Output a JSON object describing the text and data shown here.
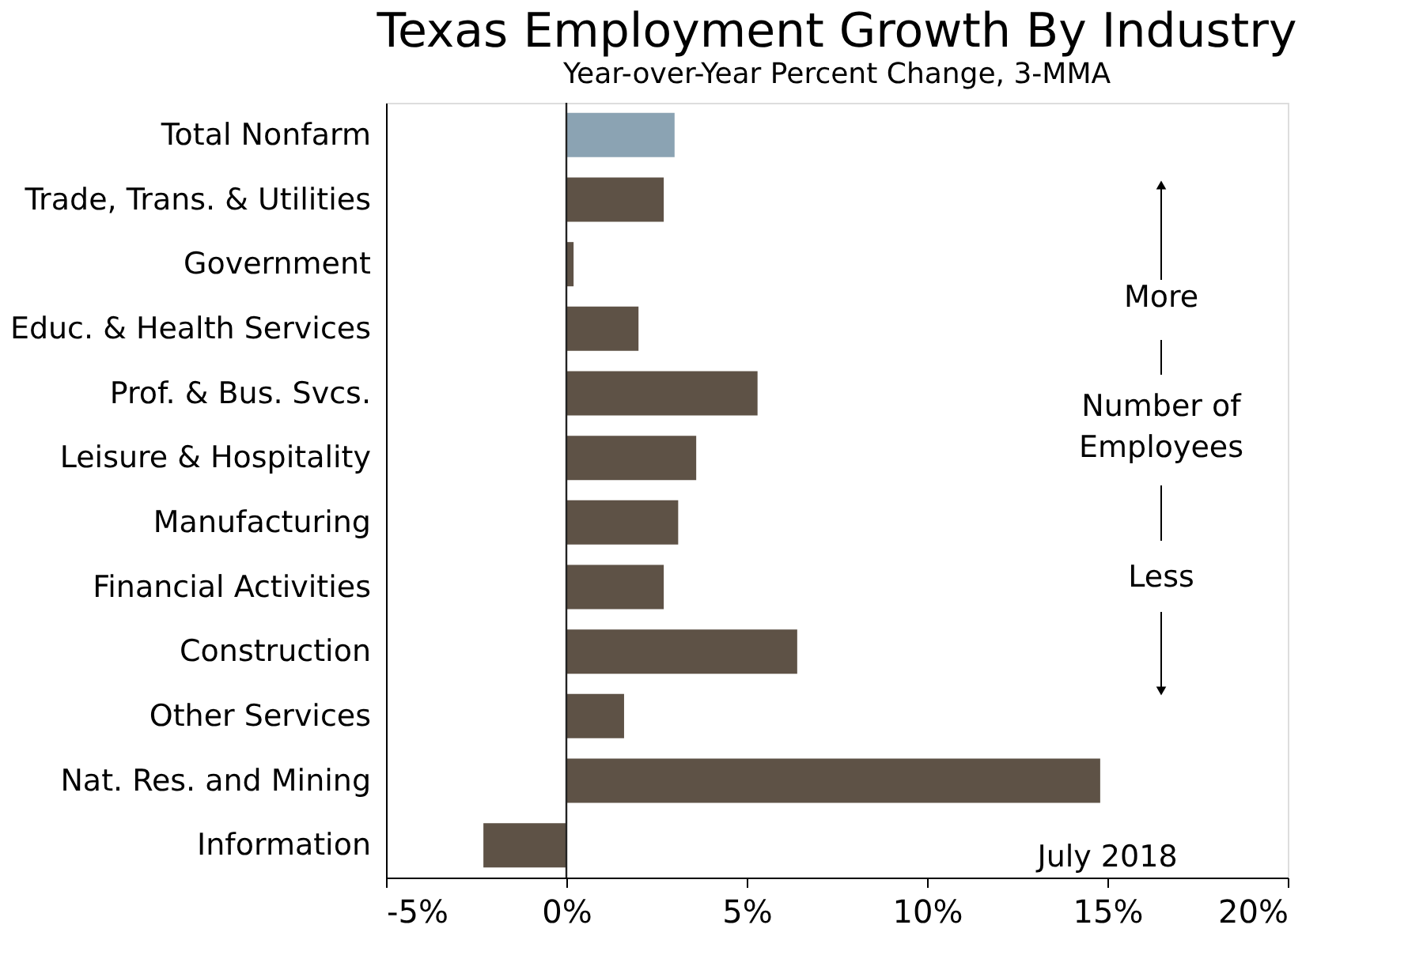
{
  "chart_data": {
    "type": "bar",
    "orientation": "horizontal",
    "title": "Texas Employment Growth By Industry",
    "subtitle": "Year-over-Year Percent Change, 3-MMA",
    "categories": [
      "Total Nonfarm",
      "Trade, Trans. & Utilities",
      "Government",
      "Educ. & Health Services",
      "Prof. & Bus. Svcs.",
      "Leisure & Hospitality",
      "Manufacturing",
      "Financial Activities",
      "Construction",
      "Other Services",
      "Nat. Res. and Mining",
      "Information"
    ],
    "values": [
      3.0,
      2.7,
      0.2,
      2.0,
      5.3,
      3.6,
      3.1,
      2.7,
      6.4,
      1.6,
      14.8,
      -2.3
    ],
    "colors": [
      "#8ba3b3",
      "#5e5246",
      "#5e5246",
      "#5e5246",
      "#5e5246",
      "#5e5246",
      "#5e5246",
      "#5e5246",
      "#5e5246",
      "#5e5246",
      "#5e5246",
      "#5e5246"
    ],
    "xlim": [
      -5,
      20
    ],
    "xticks": [
      {
        "value": -5,
        "label": "-5%"
      },
      {
        "value": 0,
        "label": "0%"
      },
      {
        "value": 5,
        "label": "5%"
      },
      {
        "value": 10,
        "label": "10%"
      },
      {
        "value": 15,
        "label": "15%"
      },
      {
        "value": 20,
        "label": "20%"
      }
    ],
    "ref_lines": [
      {
        "axis": "x",
        "value": 0,
        "color": "#222222"
      }
    ],
    "annotations": [
      "More",
      "Number of\nEmployees",
      "Less",
      "July 2018"
    ],
    "grid": false
  }
}
